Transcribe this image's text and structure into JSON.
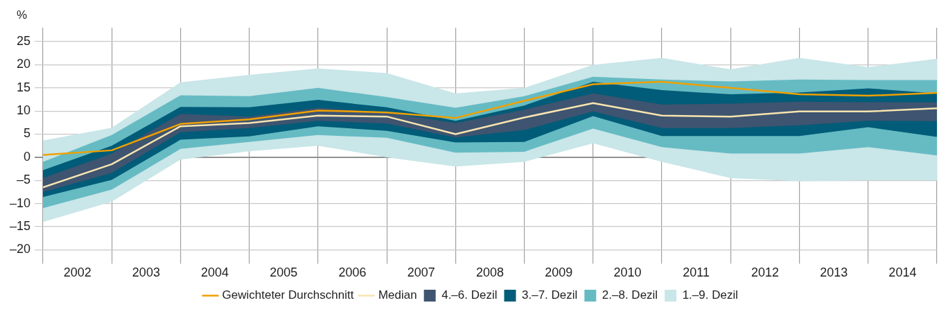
{
  "chart_data": {
    "type": "line",
    "ylabel": "%",
    "x": [
      2002,
      2003,
      2004,
      2005,
      2006,
      2007,
      2008,
      2009,
      2010,
      2011,
      2012,
      2013,
      2014,
      2015
    ],
    "xlim": [
      2002,
      2015
    ],
    "xticks": [
      {
        "value": 2002,
        "label": null
      },
      {
        "value": 2002.5,
        "label": "2002"
      },
      {
        "value": 2003,
        "label": null
      },
      {
        "value": 2003.5,
        "label": "2003"
      },
      {
        "value": 2004,
        "label": null
      },
      {
        "value": 2004.5,
        "label": "2004"
      },
      {
        "value": 2005,
        "label": null
      },
      {
        "value": 2005.5,
        "label": "2005"
      },
      {
        "value": 2006,
        "label": null
      },
      {
        "value": 2006.5,
        "label": "2006"
      },
      {
        "value": 2007,
        "label": null
      },
      {
        "value": 2007.5,
        "label": "2007"
      },
      {
        "value": 2008,
        "label": null
      },
      {
        "value": 2008.5,
        "label": "2008"
      },
      {
        "value": 2009,
        "label": null
      },
      {
        "value": 2009.5,
        "label": "2009"
      },
      {
        "value": 2010,
        "label": null
      },
      {
        "value": 2010.5,
        "label": "2010"
      },
      {
        "value": 2011,
        "label": null
      },
      {
        "value": 2011.5,
        "label": "2011"
      },
      {
        "value": 2012,
        "label": null
      },
      {
        "value": 2012.5,
        "label": "2012"
      },
      {
        "value": 2013,
        "label": null
      },
      {
        "value": 2013.5,
        "label": "2013"
      },
      {
        "value": 2014,
        "label": null
      },
      {
        "value": 2014.5,
        "label": "2014"
      },
      {
        "value": 2015,
        "label": null
      }
    ],
    "ylim": [
      -23,
      28
    ],
    "yticks": [
      {
        "value": -20,
        "label": "–20"
      },
      {
        "value": -15,
        "label": "–15"
      },
      {
        "value": -10,
        "label": "–10"
      },
      {
        "value": -5,
        "label": "–5"
      },
      0,
      5,
      10,
      15,
      20,
      25
    ],
    "grid": true,
    "legend": "bottom",
    "marker": "none",
    "line_style": "solid",
    "series": [
      {
        "name": "Gewichteter Durchschnitt",
        "type": "line",
        "color": "#f0a000",
        "values": [
          0.5,
          1.5,
          7.2,
          8.2,
          10.1,
          9.7,
          8.5,
          12.2,
          15.8,
          16.3,
          15.0,
          13.6,
          13.3,
          13.9
        ]
      },
      {
        "name": "Median",
        "type": "line",
        "color": "#f8e4b0",
        "values": [
          -6.5,
          -1.5,
          6.7,
          7.4,
          9.0,
          8.8,
          5.0,
          8.6,
          11.7,
          9.0,
          8.8,
          9.9,
          9.9,
          10.6
        ]
      },
      {
        "name": "4.–6. Dezil",
        "type": "line",
        "color": "#3e5470",
        "values": [
          null,
          null,
          null,
          null,
          null,
          null,
          null,
          null,
          null,
          null,
          null,
          null,
          null,
          null
        ],
        "lower": [
          -7.5,
          -3.4,
          5.4,
          6.3,
          7.9,
          7.3,
          4.3,
          5.9,
          9.9,
          6.3,
          6.3,
          6.9,
          7.9,
          7.8
        ],
        "upper": [
          -4.5,
          0.8,
          9.4,
          8.8,
          10.7,
          9.7,
          7.4,
          10.3,
          13.8,
          11.4,
          11.6,
          12.0,
          11.9,
          11.9
        ]
      },
      {
        "name": "3.–7. Dezil",
        "type": "line",
        "color": "#005c78",
        "values": [
          null,
          null,
          null,
          null,
          null,
          null,
          null,
          null,
          null,
          null,
          null,
          null,
          null,
          null
        ],
        "lower": [
          -8.6,
          -4.9,
          3.8,
          4.5,
          6.7,
          5.7,
          3.2,
          3.3,
          8.9,
          4.6,
          4.6,
          4.6,
          6.5,
          4.4
        ],
        "upper": [
          -2.8,
          2.5,
          10.9,
          10.8,
          12.4,
          10.8,
          7.9,
          11.2,
          16.3,
          14.5,
          13.6,
          14.0,
          14.9,
          13.8
        ]
      },
      {
        "name": "2.–8. Dezil",
        "type": "line",
        "color": "#66bbc3",
        "values": [
          null,
          null,
          null,
          null,
          null,
          null,
          null,
          null,
          null,
          null,
          null,
          null,
          null,
          null
        ],
        "lower": [
          -11.0,
          -7.0,
          1.8,
          3.3,
          4.8,
          4.2,
          1.0,
          1.2,
          6.2,
          2.2,
          0.8,
          0.8,
          2.2,
          0.4
        ],
        "upper": [
          -1.0,
          4.8,
          13.4,
          13.2,
          15.0,
          13.0,
          10.7,
          13.2,
          17.4,
          16.8,
          16.4,
          16.8,
          16.7,
          16.7
        ]
      },
      {
        "name": "1.–9. Dezil",
        "type": "line",
        "color": "#c9e6e8",
        "values": [
          null,
          null,
          null,
          null,
          null,
          null,
          null,
          null,
          null,
          null,
          null,
          null,
          null,
          null
        ],
        "lower": [
          -14.0,
          -9.6,
          -0.5,
          1.3,
          2.5,
          0.0,
          -2.0,
          -1.0,
          3.0,
          -1.0,
          -4.5,
          -5.2,
          -5.0,
          -5.0
        ],
        "upper": [
          3.6,
          6.4,
          16.2,
          17.8,
          19.2,
          18.2,
          13.8,
          15.0,
          20.0,
          21.5,
          19.0,
          21.5,
          19.5,
          21.3
        ]
      }
    ]
  }
}
